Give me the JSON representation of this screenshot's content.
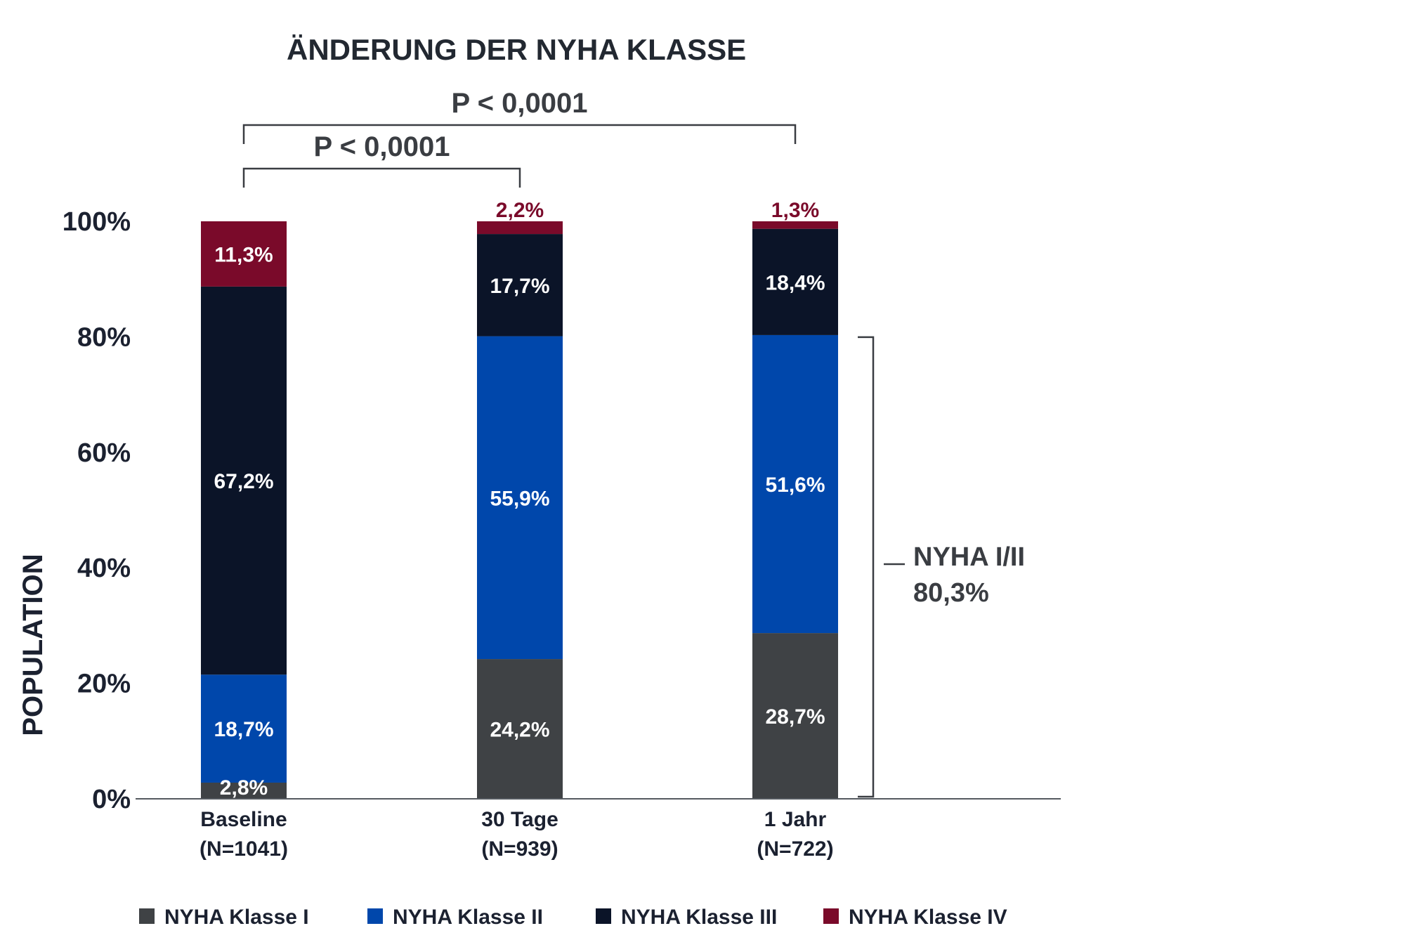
{
  "chart_data": {
    "type": "bar",
    "stacked": true,
    "title": "ÄNDERUNG DER NYHA KLASSE",
    "ylabel": "POPULATION",
    "ylim": [
      0,
      100
    ],
    "yticks": [
      "0%",
      "20%",
      "40%",
      "60%",
      "80%",
      "100%"
    ],
    "categories": [
      {
        "name": "Baseline",
        "n": "(N=1041)"
      },
      {
        "name": "30 Tage",
        "n": "(N=939)"
      },
      {
        "name": "1 Jahr",
        "n": "(N=722)"
      }
    ],
    "series": [
      {
        "name": "NYHA Klasse I",
        "color": "#3f4245",
        "values": [
          2.8,
          24.2,
          28.7
        ],
        "labels": [
          "2,8%",
          "24,2%",
          "28,7%"
        ]
      },
      {
        "name": "NYHA Klasse II",
        "color": "#0047ab",
        "values": [
          18.7,
          55.9,
          51.6
        ],
        "labels": [
          "18,7%",
          "55,9%",
          "51,6%"
        ]
      },
      {
        "name": "NYHA Klasse III",
        "color": "#0b1428",
        "values": [
          67.2,
          17.7,
          18.4
        ],
        "labels": [
          "67,2%",
          "17,7%",
          "18,4%"
        ]
      },
      {
        "name": "NYHA Klasse IV",
        "color": "#7a0a2a",
        "values": [
          11.3,
          2.2,
          1.3
        ],
        "labels": [
          "11,3%",
          "2,2%",
          "1,3%"
        ]
      }
    ],
    "comparisons": [
      {
        "label": "P < 0,0001",
        "from": "Baseline",
        "to": "1 Jahr"
      },
      {
        "label": "P < 0,0001",
        "from": "Baseline",
        "to": "30 Tage"
      }
    ],
    "annotation": {
      "line1": "NYHA I/II",
      "line2": "80,3%",
      "applies_to": "1 Jahr",
      "range": [
        0,
        80.3
      ]
    },
    "legend_position": "bottom",
    "grid": false
  }
}
